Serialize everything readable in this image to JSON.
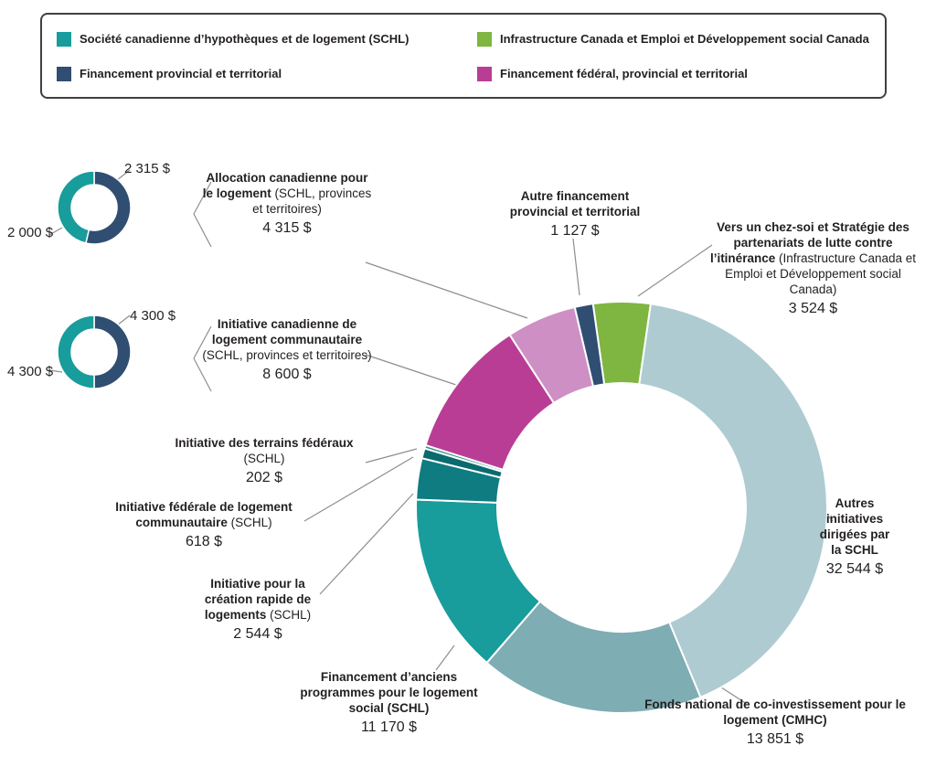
{
  "legend": {
    "items": [
      {
        "label": "Société canadienne d’hypothèques et de logement (SCHL)",
        "color": "#189C9C"
      },
      {
        "label": "Infrastructure Canada et Emploi et Développement social Canada",
        "color": "#7FB541"
      },
      {
        "label": "Financement provincial et territorial",
        "color": "#2F4E72"
      },
      {
        "label": "Financement fédéral, provincial et territorial",
        "color": "#B93D94"
      }
    ]
  },
  "chart_data": [
    {
      "id": "allocation-mini-donut",
      "type": "pie",
      "subtype": "donut",
      "start_angle_deg": 0,
      "total": 4315,
      "total_label": "4 315 $",
      "slices": [
        {
          "label": "Financement provincial et territorial",
          "value": 2315,
          "value_label": "2 315 $",
          "color": "#2F4E72"
        },
        {
          "label": "SCHL",
          "value": 2000,
          "value_label": "2 000 $",
          "color": "#189C9C"
        }
      ]
    },
    {
      "id": "initiative-mini-donut",
      "type": "pie",
      "subtype": "donut",
      "start_angle_deg": 0,
      "total": 8600,
      "total_label": "8 600 $",
      "slices": [
        {
          "label": "Financement provincial et territorial",
          "value": 4300,
          "value_label": "4 300 $",
          "color": "#2F4E72"
        },
        {
          "label": "SCHL",
          "value": 4300,
          "value_label": "4 300 $",
          "color": "#189C9C"
        }
      ]
    },
    {
      "id": "main-donut",
      "type": "pie",
      "subtype": "donut",
      "start_angle_deg": -8,
      "total": 78495,
      "legend_position": "top",
      "slices": [
        {
          "name_bold": "Vers un chez-soi et Stratégie des partenariats de lutte contre l’itinérance",
          "name_normal": "(Infrastructure Canada et Emploi et Développement social Canada)",
          "value": 3524,
          "value_label": "3 524 $",
          "color": "#7FB541"
        },
        {
          "name_bold": "Autres initiatives dirigées par la SCHL",
          "name_normal": "",
          "value": 32544,
          "value_label": "32 544 $",
          "color": "#AFCBD2"
        },
        {
          "name_bold": "Fonds national de co-investissement pour le logement (CMHC)",
          "name_normal": "",
          "value": 13851,
          "value_label": "13 851 $",
          "color": "#7EADB3"
        },
        {
          "name_bold": "Financement d’anciens programmes pour le logement social (SCHL)",
          "name_normal": "",
          "value": 11170,
          "value_label": "11 170 $",
          "color": "#189C9C"
        },
        {
          "name_bold": "Initiative pour la création rapide de logements",
          "name_normal": "(SCHL)",
          "value": 2544,
          "value_label": "2 544 $",
          "color": "#0E7C80"
        },
        {
          "name_bold": "Initiative fédérale de logement communautaire",
          "name_normal": "(SCHL)",
          "value": 618,
          "value_label": "618 $",
          "color": "#0A6A6E"
        },
        {
          "name_bold": "Initiative des terrains fédéraux",
          "name_normal": "(SCHL)",
          "value": 202,
          "value_label": "202 $",
          "color": "#35918D"
        },
        {
          "name_bold": "Initiative canadienne de logement communautaire",
          "name_normal": "(SCHL, provinces et territoires)",
          "value": 8600,
          "value_label": "8 600 $",
          "color": "#B93D94"
        },
        {
          "name_bold": "Allocation canadienne pour le logement",
          "name_normal": "(SCHL, provinces et territoires)",
          "value": 4315,
          "value_label": "4 315 $",
          "color": "#CE8FC5"
        },
        {
          "name_bold": "Autre financement provincial et territorial",
          "name_normal": "",
          "value": 1127,
          "value_label": "1 127 $",
          "color": "#2F4E72"
        }
      ]
    }
  ]
}
